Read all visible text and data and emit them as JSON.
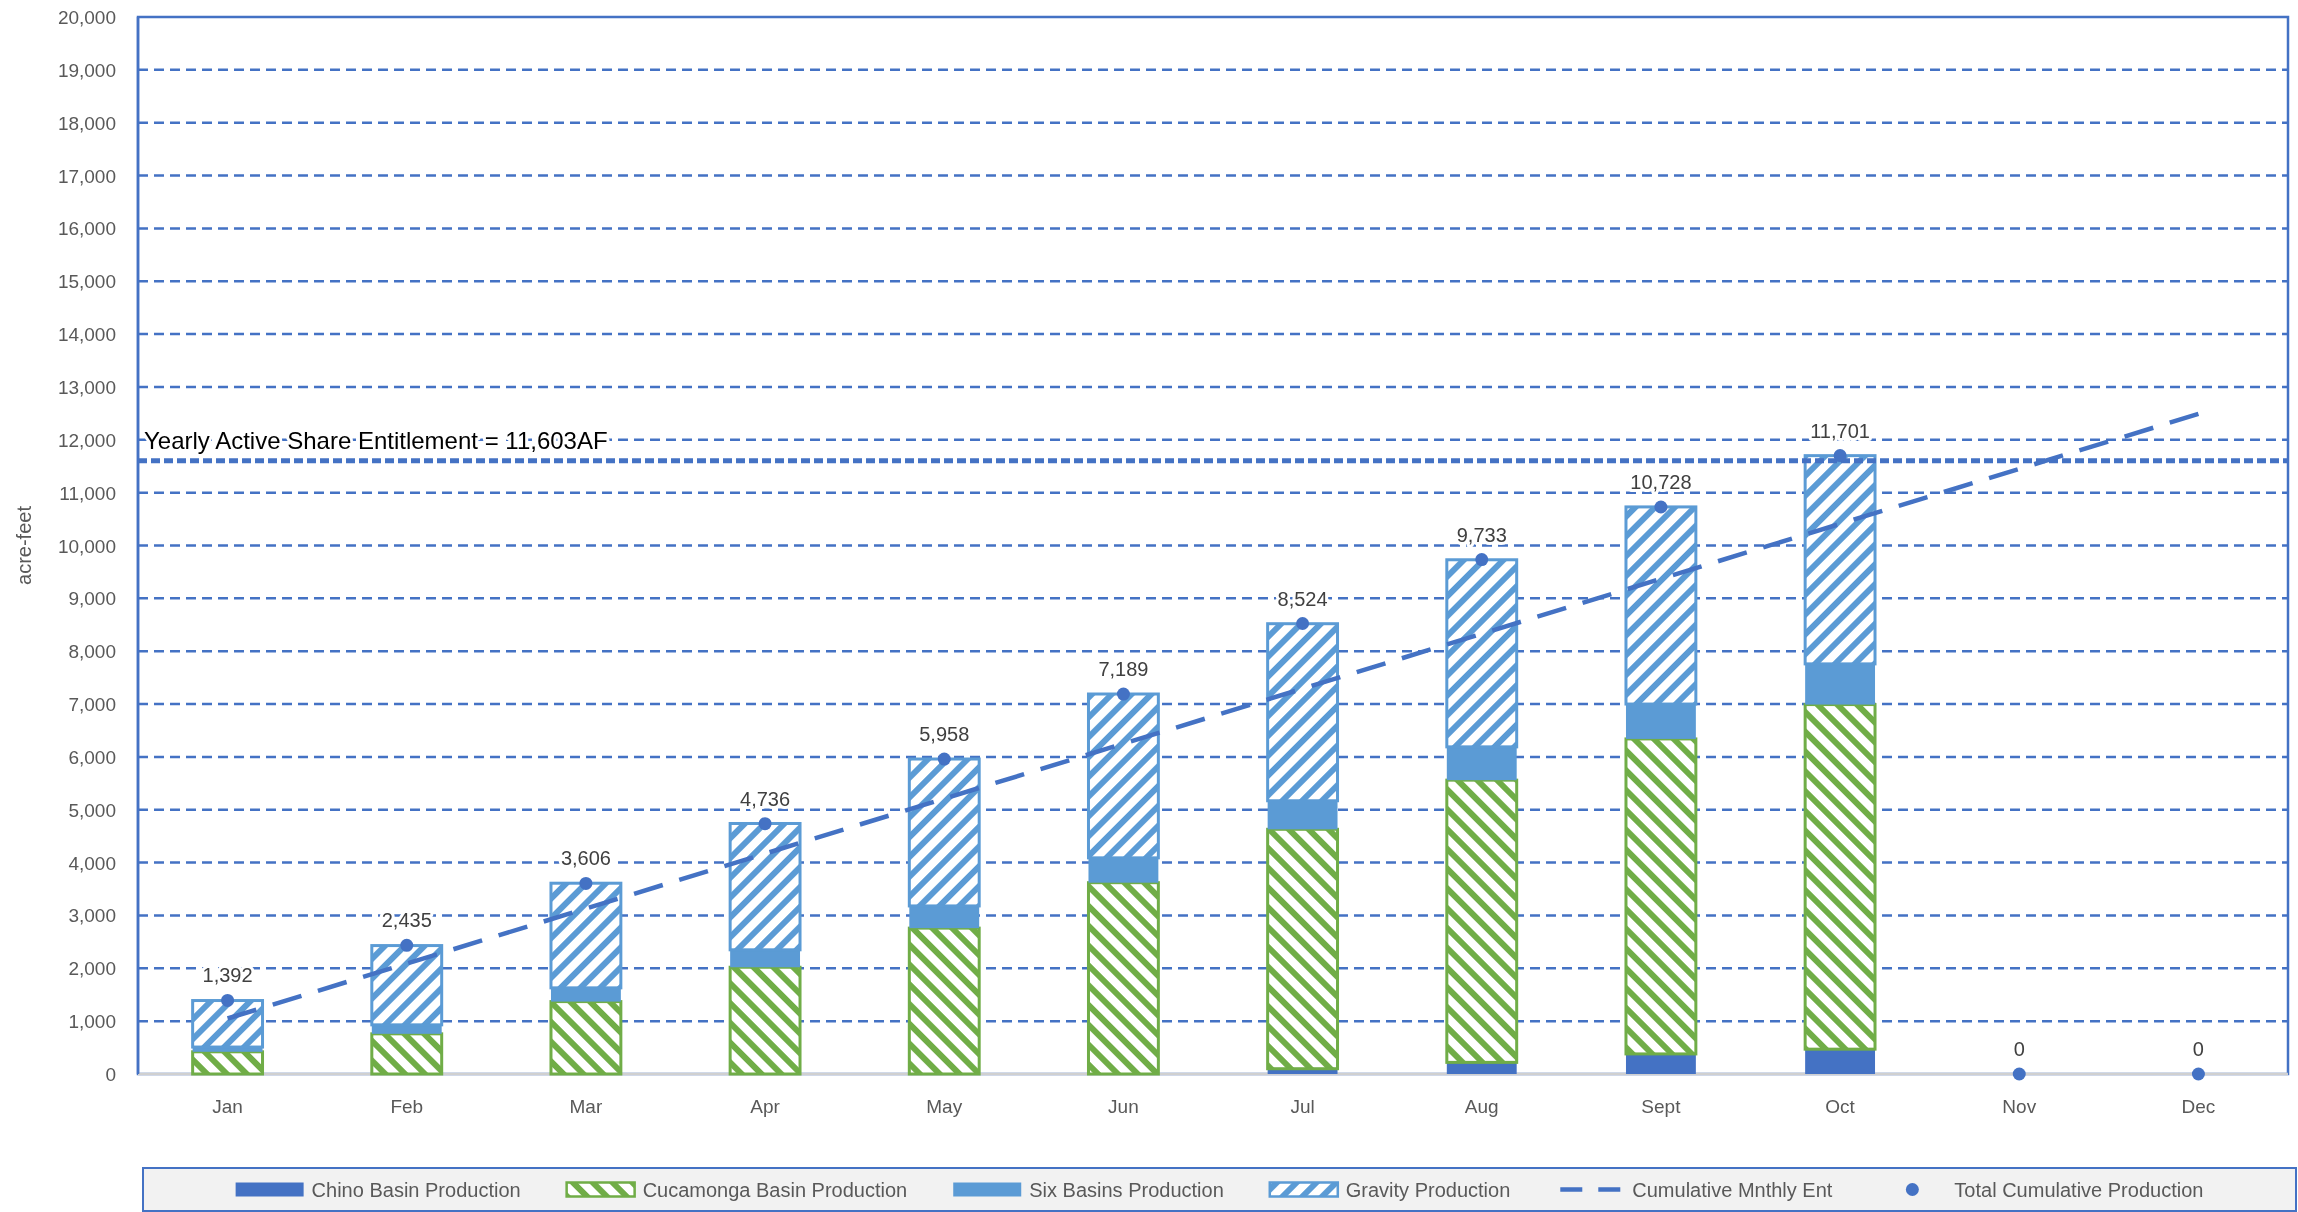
{
  "chart_data": {
    "type": "bar",
    "stacked": true,
    "categories": [
      "Jan",
      "Feb",
      "Mar",
      "Apr",
      "May",
      "Jun",
      "Jul",
      "Aug",
      "Sept",
      "Oct",
      "Nov",
      "Dec"
    ],
    "ylabel": "acre-feet",
    "ylim": [
      0,
      20000
    ],
    "yticks": [
      0,
      {
        "value": 1000,
        "label": "1,000"
      },
      {
        "value": 2000,
        "label": "2,000"
      },
      {
        "value": 3000,
        "label": "3,000"
      },
      {
        "value": 4000,
        "label": "4,000"
      },
      {
        "value": 5000,
        "label": "5,000"
      },
      {
        "value": 6000,
        "label": "6,000"
      },
      {
        "value": 7000,
        "label": "7,000"
      },
      {
        "value": 8000,
        "label": "8,000"
      },
      {
        "value": 9000,
        "label": "9,000"
      },
      {
        "value": 10000,
        "label": "10,000"
      },
      {
        "value": 11000,
        "label": "11,000"
      },
      {
        "value": 12000,
        "label": "12,000"
      },
      {
        "value": 13000,
        "label": "13,000"
      },
      {
        "value": 14000,
        "label": "14,000"
      },
      {
        "value": 15000,
        "label": "15,000"
      },
      {
        "value": 16000,
        "label": "16,000"
      },
      {
        "value": 17000,
        "label": "17,000"
      },
      {
        "value": 18000,
        "label": "18,000"
      },
      {
        "value": 19000,
        "label": "19,000"
      },
      {
        "value": 20000,
        "label": "20,000"
      }
    ],
    "grid": "y",
    "legend": "bottom",
    "ref_lines": [
      {
        "axis": "y",
        "value": 11603,
        "label": "Yearly Active Share Entitlement = 11,603AF",
        "color": "#4472c4",
        "line_style": "dashed"
      }
    ],
    "series": [
      {
        "name": "Chino Basin Production",
        "color": "#4472c4",
        "values": [
          0,
          0,
          0,
          0,
          0,
          0,
          100,
          220,
          380,
          470,
          0,
          0
        ]
      },
      {
        "name": "Cucamonga Basin Production",
        "color": "#70ad47",
        "values": [
          420,
          760,
          1370,
          2020,
          2760,
          3620,
          4530,
          5340,
          5960,
          6520,
          0,
          0
        ]
      },
      {
        "name": "Six Basins Production",
        "color": "#5b9bd5",
        "values": [
          90,
          170,
          260,
          330,
          420,
          470,
          540,
          630,
          660,
          770,
          0,
          0
        ]
      },
      {
        "name": "Gravity Production",
        "color": "#5b9bd5",
        "values": [
          880,
          1500,
          1980,
          2390,
          2780,
          3100,
          3350,
          3540,
          3730,
          3940,
          0,
          0
        ]
      },
      {
        "name": "Cumulative Mnthly Ent",
        "type": "line",
        "color": "#4472c4",
        "line_style": "dashed",
        "values": [
          1050,
          2090,
          3130,
          4170,
          5210,
          6250,
          7290,
          8330,
          9370,
          10410,
          11450,
          12490
        ]
      },
      {
        "name": "Total Cumulative Production",
        "type": "scatter",
        "color": "#4472c4",
        "marker": "circle",
        "values": [
          1392,
          2435,
          3606,
          4736,
          5958,
          7189,
          8524,
          9733,
          10728,
          11701,
          0,
          0
        ],
        "value_labels": [
          "1,392",
          "2,435",
          "3,606",
          "4,736",
          "5,958",
          "7,189",
          "8,524",
          "9,733",
          "10,728",
          "11,701",
          "0",
          "0"
        ]
      }
    ]
  }
}
